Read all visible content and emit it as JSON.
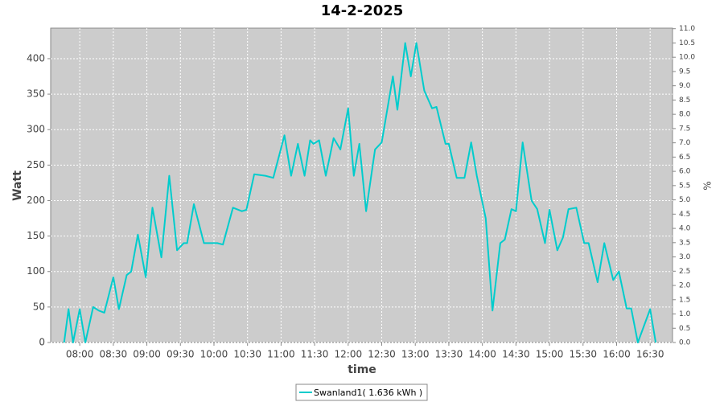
{
  "chart_data": {
    "type": "line",
    "title": "14-2-2025",
    "x_label": "time",
    "y_label": "Watt",
    "y2_label": "%",
    "x": [
      "07:46",
      "07:50",
      "07:54",
      "08:00",
      "08:05",
      "08:12",
      "08:17",
      "08:22",
      "08:30",
      "08:35",
      "08:42",
      "08:46",
      "08:52",
      "08:59",
      "09:05",
      "09:13",
      "09:20",
      "09:27",
      "09:33",
      "09:36",
      "09:42",
      "09:51",
      "09:57",
      "10:03",
      "10:08",
      "10:17",
      "10:25",
      "10:29",
      "10:36",
      "10:46",
      "10:53",
      "11:03",
      "11:09",
      "11:15",
      "11:21",
      "11:26",
      "11:29",
      "11:34",
      "11:40",
      "11:47",
      "11:53",
      "12:00",
      "12:05",
      "12:10",
      "12:16",
      "12:24",
      "12:30",
      "12:40",
      "12:44",
      "12:51",
      "12:56",
      "13:01",
      "13:08",
      "13:15",
      "13:19",
      "13:27",
      "13:30",
      "13:37",
      "13:44",
      "13:50",
      "13:55",
      "14:03",
      "14:09",
      "14:16",
      "14:20",
      "14:26",
      "14:30",
      "14:36",
      "14:44",
      "14:49",
      "14:56",
      "15:00",
      "15:07",
      "15:12",
      "15:17",
      "15:24",
      "15:31",
      "15:35",
      "15:43",
      "15:49",
      "15:57",
      "16:02",
      "16:09",
      "16:13",
      "16:19",
      "16:30",
      "16:35"
    ],
    "series": [
      {
        "name": "Swanland1( 1.636 kWh )",
        "color": "#00cccc",
        "values": [
          0,
          47,
          0,
          47,
          0,
          50,
          45,
          42,
          92,
          47,
          95,
          100,
          152,
          92,
          190,
          120,
          235,
          130,
          140,
          140,
          195,
          140,
          140,
          140,
          138,
          190,
          185,
          187,
          237,
          235,
          232,
          292,
          235,
          280,
          235,
          285,
          280,
          285,
          235,
          288,
          272,
          330,
          235,
          280,
          185,
          272,
          282,
          375,
          328,
          422,
          375,
          422,
          355,
          330,
          332,
          280,
          280,
          232,
          232,
          282,
          235,
          175,
          45,
          140,
          145,
          188,
          185,
          282,
          200,
          188,
          140,
          187,
          130,
          148,
          188,
          190,
          140,
          140,
          85,
          140,
          88,
          100,
          48,
          48,
          0,
          47,
          0
        ]
      }
    ],
    "xlim": [
      "07:34",
      "16:50"
    ],
    "xticks": [
      "08:00",
      "08:30",
      "09:00",
      "09:30",
      "10:00",
      "10:30",
      "11:00",
      "11:30",
      "12:00",
      "12:30",
      "13:00",
      "13:30",
      "14:00",
      "14:30",
      "15:00",
      "15:30",
      "16:00",
      "16:30"
    ],
    "ylim": [
      0,
      443
    ],
    "yticks": [
      0,
      50,
      100,
      150,
      200,
      250,
      300,
      350,
      400
    ],
    "y2lim": [
      0,
      11.02
    ],
    "y2ticks": [
      {
        "value": 0,
        "label": "0.0"
      },
      {
        "value": 0.5,
        "label": "0.5"
      },
      {
        "value": 1,
        "label": "1.0"
      },
      {
        "value": 1.5,
        "label": "1.5"
      },
      {
        "value": 2,
        "label": "2.0"
      },
      {
        "value": 2.5,
        "label": "2.5"
      },
      {
        "value": 3,
        "label": "3.0"
      },
      {
        "value": 3.5,
        "label": "3.5"
      },
      {
        "value": 4,
        "label": "4.0"
      },
      {
        "value": 4.5,
        "label": "4.5"
      },
      {
        "value": 5,
        "label": "5.0"
      },
      {
        "value": 5.5,
        "label": "5.5"
      },
      {
        "value": 6,
        "label": "6.0"
      },
      {
        "value": 6.5,
        "label": "6.5"
      },
      {
        "value": 7,
        "label": "7.0"
      },
      {
        "value": 7.5,
        "label": "7.5"
      },
      {
        "value": 8,
        "label": "8.0"
      },
      {
        "value": 8.5,
        "label": "8.5"
      },
      {
        "value": 9,
        "label": "9.0"
      },
      {
        "value": 9.5,
        "label": "9.5"
      },
      {
        "value": 10,
        "label": "10.0"
      },
      {
        "value": 10.5,
        "label": "10.5"
      },
      {
        "value": 11,
        "label": "11.0"
      }
    ],
    "grid": true,
    "legend": "bottom"
  }
}
